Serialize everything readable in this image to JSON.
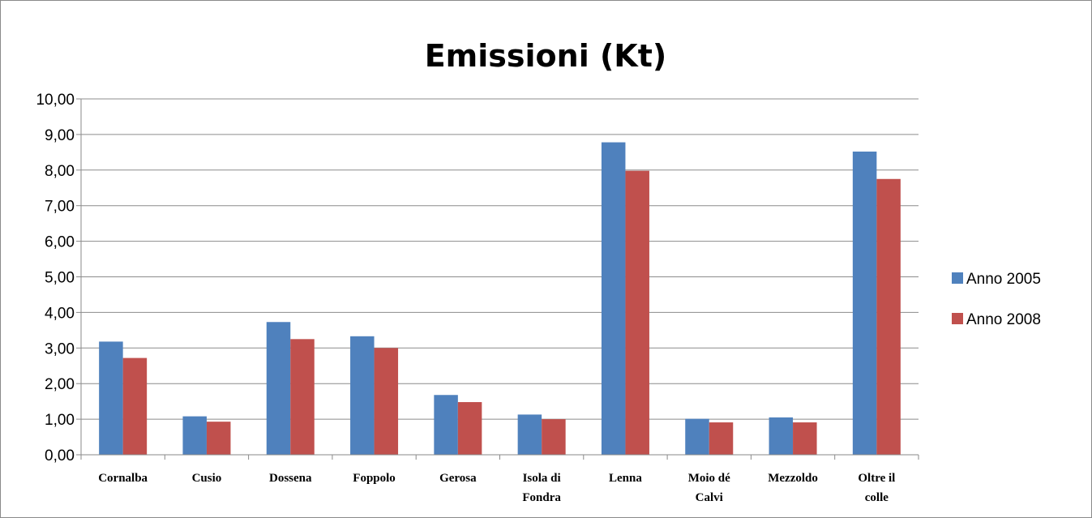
{
  "chart_data": {
    "type": "bar",
    "title": "Emissioni (Kt)",
    "xlabel": "",
    "ylabel": "",
    "ylim": [
      0,
      10
    ],
    "ytick_labels": [
      "0,00",
      "1,00",
      "2,00",
      "3,00",
      "4,00",
      "5,00",
      "6,00",
      "7,00",
      "8,00",
      "9,00",
      "10,00"
    ],
    "categories": [
      [
        "Cornalba"
      ],
      [
        "Cusio"
      ],
      [
        "Dossena"
      ],
      [
        "Foppolo"
      ],
      [
        "Gerosa"
      ],
      [
        "Isola di",
        "Fondra"
      ],
      [
        "Lenna"
      ],
      [
        "Moio dé",
        "Calvi"
      ],
      [
        "Mezzoldo"
      ],
      [
        "Oltre il",
        "colle"
      ]
    ],
    "series": [
      {
        "name": "Anno 2005",
        "color": "#4f81bd",
        "values": [
          3.18,
          1.08,
          3.73,
          3.33,
          1.68,
          1.13,
          8.78,
          1.01,
          1.05,
          8.52
        ]
      },
      {
        "name": "Anno 2008",
        "color": "#c0504d",
        "values": [
          2.72,
          0.93,
          3.25,
          3.0,
          1.48,
          1.0,
          7.98,
          0.91,
          0.91,
          7.75
        ]
      }
    ],
    "grid": true,
    "legend": "right"
  }
}
